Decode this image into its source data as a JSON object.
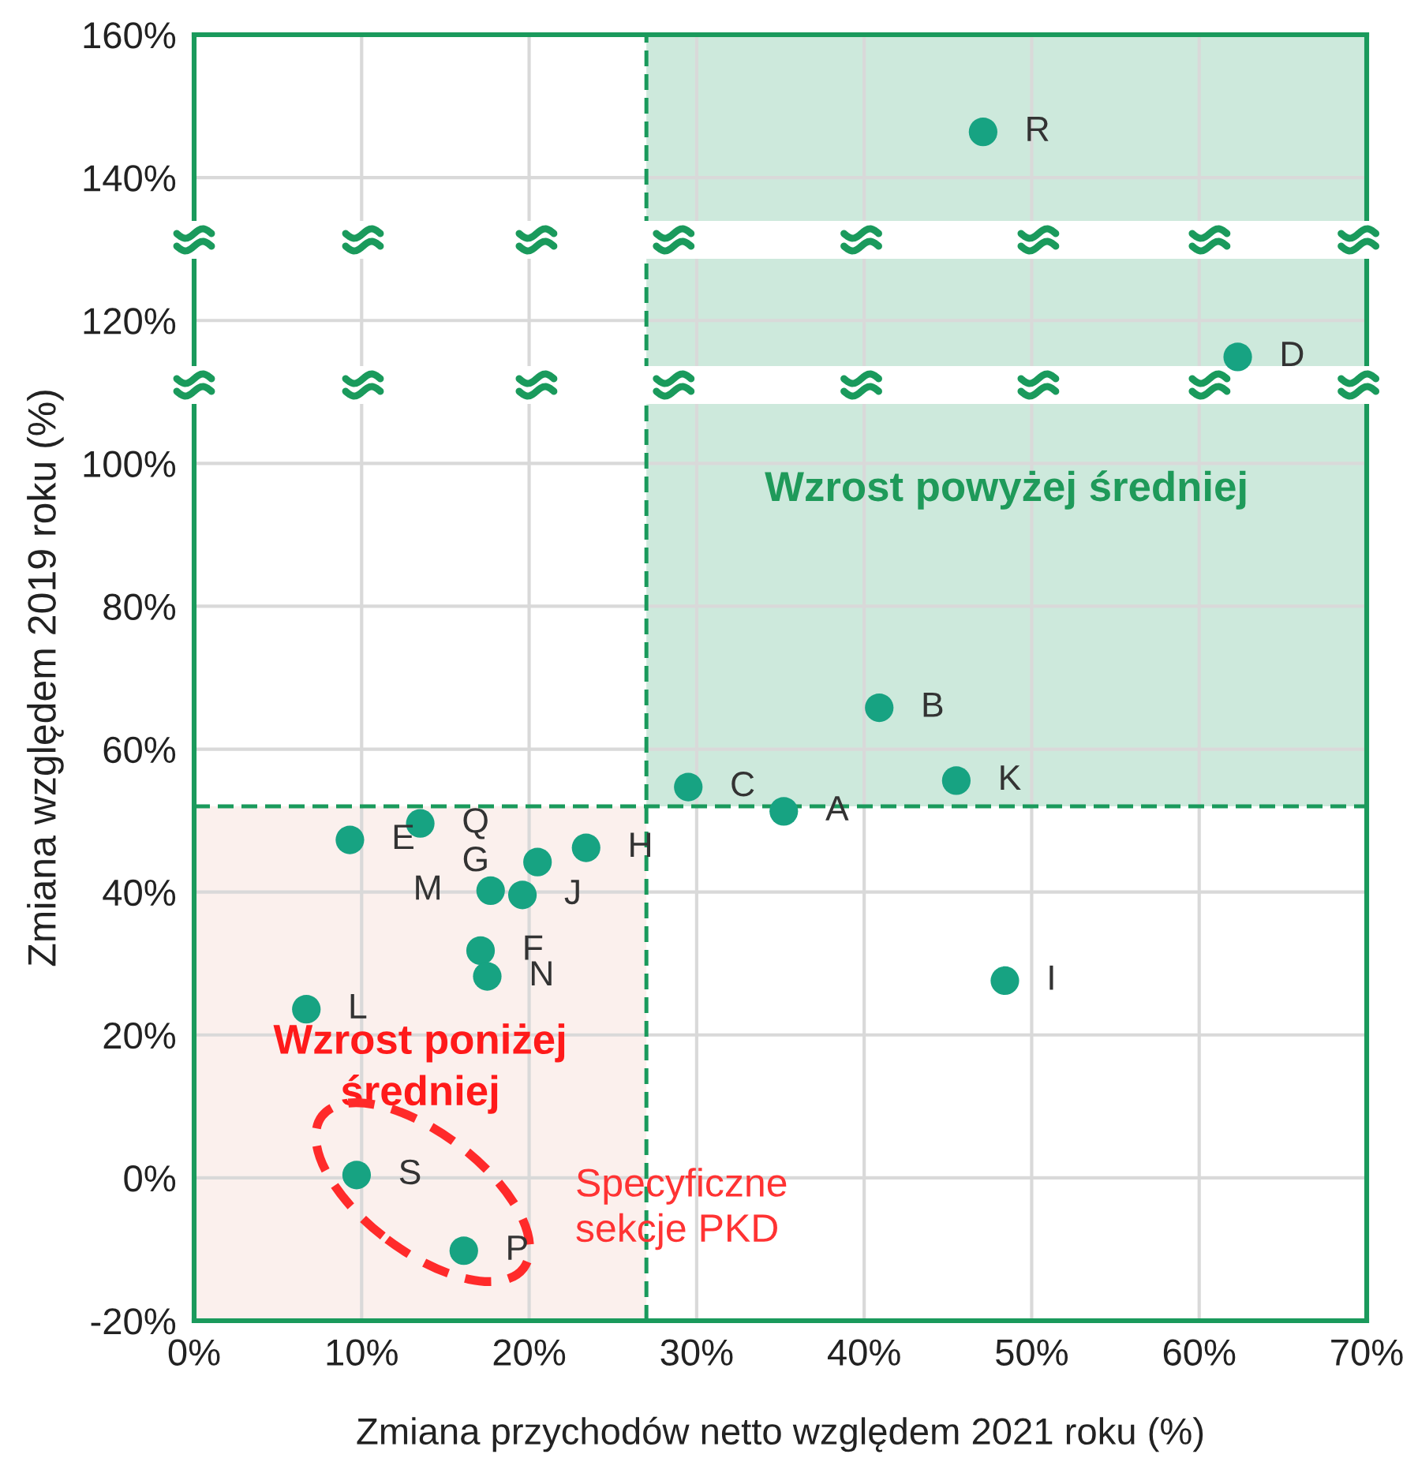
{
  "chart_data": {
    "type": "scatter",
    "xlabel": "Zmiana przychodów netto względem 2021 roku (%)",
    "ylabel": "Zmiana względem 2019 roku (%)",
    "series": [
      {
        "color": "#17a382",
        "x": [
          47.1,
          62.3,
          40.9,
          45.5,
          29.5,
          35.2,
          48.4,
          9.3,
          13.5,
          20.5,
          23.4,
          17.7,
          19.6,
          17.1,
          17.5,
          6.7,
          9.7,
          16.1
        ],
        "values": [
          146.4,
          114.9,
          65.8,
          55.6,
          54.7,
          51.3,
          27.6,
          47.3,
          49.6,
          44.2,
          46.2,
          40.2,
          39.6,
          31.8,
          28.2,
          23.6,
          0.4,
          -10.2
        ]
      }
    ],
    "marker": "circle",
    "xlim": [
      0,
      70
    ],
    "xticks": [
      {
        "value": 0,
        "label": "0%"
      },
      {
        "value": 10,
        "label": "10%"
      },
      {
        "value": 20,
        "label": "20%"
      },
      {
        "value": 30,
        "label": "30%"
      },
      {
        "value": 40,
        "label": "40%"
      },
      {
        "value": 50,
        "label": "50%"
      },
      {
        "value": 60,
        "label": "60%"
      },
      {
        "value": 70,
        "label": "70%"
      }
    ],
    "ylim": [
      -20,
      160
    ],
    "yticks": [
      {
        "value": -20,
        "label": "-20%"
      },
      {
        "value": 0,
        "label": "0%"
      },
      {
        "value": 20,
        "label": "20%"
      },
      {
        "value": 40,
        "label": "40%"
      },
      {
        "value": 60,
        "label": "60%"
      },
      {
        "value": 80,
        "label": "80%"
      },
      {
        "value": 100,
        "label": "100%"
      },
      {
        "value": 120,
        "label": "120%"
      },
      {
        "value": 140,
        "label": "140%"
      },
      {
        "value": 160,
        "label": "160%"
      }
    ],
    "grid": true,
    "ref_lines": [
      {
        "axis": "x",
        "value": 27,
        "color": "#1a9a5c",
        "line_style": "dashed"
      },
      {
        "axis": "y",
        "value": 52,
        "color": "#1a9a5c",
        "line_style": "dashed"
      }
    ],
    "bands": [
      {
        "axis": "x",
        "from": 27,
        "to": 70,
        "label": "Wzrost powyżej średniej",
        "color": "#cde9dc"
      },
      {
        "axis": "x",
        "from": 0,
        "to": 27,
        "label": "Wzrost poniżej\nśredniej",
        "color": "#fbf0ed"
      }
    ],
    "annotations": [
      {
        "text": "R",
        "x": 47.1,
        "y": 146.4
      },
      {
        "text": "D",
        "x": 62.3,
        "y": 114.9
      },
      {
        "text": "B",
        "x": 40.9,
        "y": 65.8
      },
      {
        "text": "K",
        "x": 45.5,
        "y": 55.6
      },
      {
        "text": "C",
        "x": 29.5,
        "y": 54.7
      },
      {
        "text": "A",
        "x": 35.2,
        "y": 51.3
      },
      {
        "text": "I",
        "x": 48.4,
        "y": 27.6
      },
      {
        "text": "E",
        "x": 9.3,
        "y": 47.3
      },
      {
        "text": "Q",
        "x": 13.5,
        "y": 49.6
      },
      {
        "text": "G",
        "x": 20.5,
        "y": 44.2
      },
      {
        "text": "H",
        "x": 23.4,
        "y": 46.2
      },
      {
        "text": "M",
        "x": 17.7,
        "y": 40.2
      },
      {
        "text": "J",
        "x": 19.6,
        "y": 39.6
      },
      {
        "text": "F",
        "x": 17.1,
        "y": 31.8
      },
      {
        "text": "N",
        "x": 17.5,
        "y": 28.2
      },
      {
        "text": "L",
        "x": 6.7,
        "y": 23.6
      },
      {
        "text": "S",
        "x": 9.7,
        "y": 0.4
      },
      {
        "text": "P",
        "x": 16.1,
        "y": -10.2
      },
      "Specyficzne\nsekcje PKD"
    ]
  }
}
